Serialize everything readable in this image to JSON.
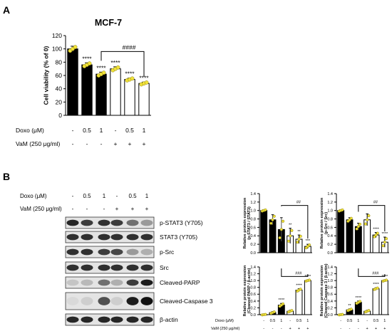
{
  "panel_a_label": "A",
  "panel_b_label": "B",
  "colors": {
    "black_bar": "#000000",
    "white_bar": "#ffffff",
    "dot": "#f2e33a",
    "dot_edge": "#8a7f10"
  },
  "treatment_rows": {
    "doxo_label": "Doxo (μM)",
    "vam_label": "VaM (250 μg/ml)",
    "doxo_values": [
      "-",
      "0.5",
      "1",
      "-",
      "0.5",
      "1"
    ],
    "vam_values": [
      "-",
      "-",
      "-",
      "+",
      "+",
      "+"
    ]
  },
  "blot": {
    "labels": [
      "p-STAT3 (Y705)",
      "STAT3 (Y705)",
      "p-Src",
      "Src",
      "Cleaved-PARP",
      "Cleaved-Caspase 3",
      "β-actin"
    ]
  },
  "chart_data": [
    {
      "type": "bar",
      "title": "MCF-7",
      "ylabel": "Cell viability (% of 0)",
      "ylim": [
        0,
        120
      ],
      "yticks": [
        "0",
        "20",
        "40",
        "60",
        "80",
        "100",
        "120"
      ],
      "values": [
        100,
        76,
        62,
        70,
        54,
        48
      ],
      "errors": [
        4,
        3,
        3,
        3,
        2,
        2
      ],
      "fills": [
        "black",
        "black",
        "black",
        "white",
        "white",
        "white"
      ],
      "annotations": [
        "",
        "****",
        "****",
        "****",
        "****",
        "****"
      ],
      "bracket": {
        "from": 2,
        "to": 5,
        "label": "####"
      }
    },
    {
      "type": "bar",
      "ylabel": "Relative protein expression (p-STAT3 / STAT3)",
      "ylim": [
        0,
        1.4
      ],
      "yticks": [
        "0.0",
        "0.2",
        "0.4",
        "0.6",
        "0.8",
        "1.0",
        "1.2",
        "1.4"
      ],
      "values": [
        1.0,
        0.78,
        0.55,
        0.4,
        0.32,
        0.15
      ],
      "errors": [
        0.02,
        0.12,
        0.28,
        0.18,
        0.1,
        0.05
      ],
      "fills": [
        "black",
        "black",
        "black",
        "white",
        "white",
        "white"
      ],
      "annotations": [
        "",
        "",
        "",
        "**",
        "**",
        "***"
      ],
      "bracket": {
        "from": 2,
        "to": 5,
        "label": "##"
      }
    },
    {
      "type": "bar",
      "ylabel": "Relative protein expression (p-Src / Src)",
      "ylim": [
        0,
        1.4
      ],
      "yticks": [
        "0.0",
        "0.2",
        "0.4",
        "0.6",
        "0.8",
        "1.0",
        "1.2",
        "1.4"
      ],
      "values": [
        1.0,
        0.78,
        0.62,
        0.78,
        0.42,
        0.25
      ],
      "errors": [
        0.02,
        0.05,
        0.08,
        0.14,
        0.06,
        0.12
      ],
      "fills": [
        "black",
        "black",
        "black",
        "white",
        "white",
        "white"
      ],
      "annotations": [
        "",
        "",
        "",
        "",
        "****",
        "****"
      ],
      "bracket": {
        "from": 2,
        "to": 5,
        "label": "##"
      }
    },
    {
      "type": "bar",
      "ylabel": "Relative protein expression (Cleaved PARP / β-actin)",
      "ylim": [
        0,
        1.4
      ],
      "yticks": [
        "0.0",
        "0.2",
        "0.4",
        "0.6",
        "0.8",
        "1.0",
        "1.2",
        "1.4"
      ],
      "values": [
        0.0,
        0.06,
        0.28,
        0.1,
        0.72,
        1.0
      ],
      "errors": [
        0.01,
        0.03,
        0.05,
        0.03,
        0.04,
        0.02
      ],
      "fills": [
        "black",
        "black",
        "black",
        "white",
        "white",
        "white"
      ],
      "annotations": [
        "",
        "",
        "****",
        "",
        "****",
        "****"
      ],
      "bracket": {
        "from": 2,
        "to": 5,
        "label": "###"
      }
    },
    {
      "type": "bar",
      "ylabel": "Relative protein expression (Cleaved Caspase 3 / β-actin)",
      "ylim": [
        0,
        1.4
      ],
      "yticks": [
        "0.0",
        "0.2",
        "0.4",
        "0.6",
        "0.8",
        "1.0",
        "1.2",
        "1.4"
      ],
      "values": [
        0.0,
        0.14,
        0.36,
        0.1,
        0.76,
        1.0
      ],
      "errors": [
        0.01,
        0.03,
        0.04,
        0.03,
        0.03,
        0.02
      ],
      "fills": [
        "black",
        "black",
        "black",
        "white",
        "white",
        "white"
      ],
      "annotations": [
        "",
        "**",
        "****",
        "",
        "****",
        "****"
      ],
      "bracket": {
        "from": 2,
        "to": 5,
        "label": "###"
      }
    }
  ]
}
